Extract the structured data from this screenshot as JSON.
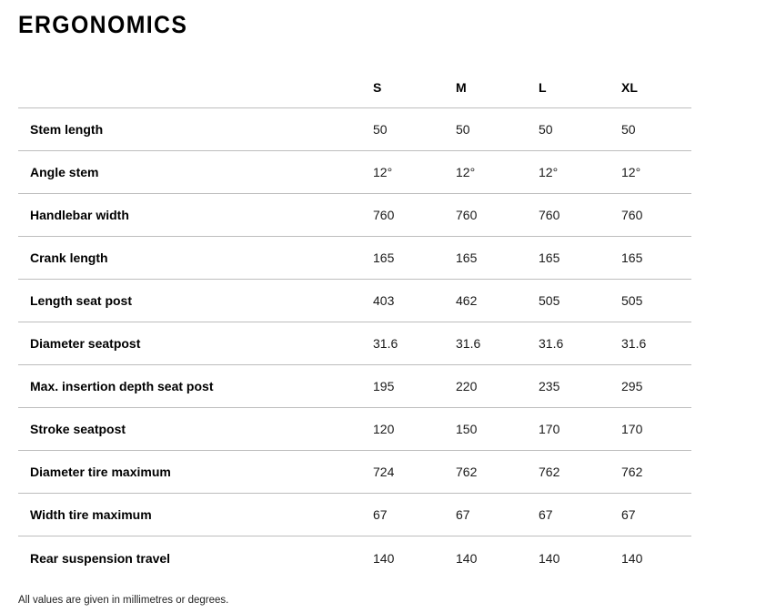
{
  "page": {
    "title": "ERGONOMICS",
    "footnote": "All values are given in millimetres or degrees."
  },
  "table": {
    "size_columns": [
      "S",
      "M",
      "L",
      "XL"
    ],
    "rows": [
      {
        "label": "Stem length",
        "values": [
          "50",
          "50",
          "50",
          "50"
        ]
      },
      {
        "label": "Angle stem",
        "values": [
          "12°",
          "12°",
          "12°",
          "12°"
        ]
      },
      {
        "label": "Handlebar width",
        "values": [
          "760",
          "760",
          "760",
          "760"
        ]
      },
      {
        "label": "Crank length",
        "values": [
          "165",
          "165",
          "165",
          "165"
        ]
      },
      {
        "label": "Length seat post",
        "values": [
          "403",
          "462",
          "505",
          "505"
        ]
      },
      {
        "label": "Diameter seatpost",
        "values": [
          "31.6",
          "31.6",
          "31.6",
          "31.6"
        ]
      },
      {
        "label": "Max. insertion depth seat post",
        "values": [
          "195",
          "220",
          "235",
          "295"
        ]
      },
      {
        "label": "Stroke seatpost",
        "values": [
          "120",
          "150",
          "170",
          "170"
        ]
      },
      {
        "label": "Diameter tire maximum",
        "values": [
          "724",
          "762",
          "762",
          "762"
        ]
      },
      {
        "label": "Width tire maximum",
        "values": [
          "67",
          "67",
          "67",
          "67"
        ]
      },
      {
        "label": "Rear suspension travel",
        "values": [
          "140",
          "140",
          "140",
          "140"
        ]
      }
    ]
  },
  "colors": {
    "divider": "#bdbdbd",
    "text": "#000000"
  }
}
